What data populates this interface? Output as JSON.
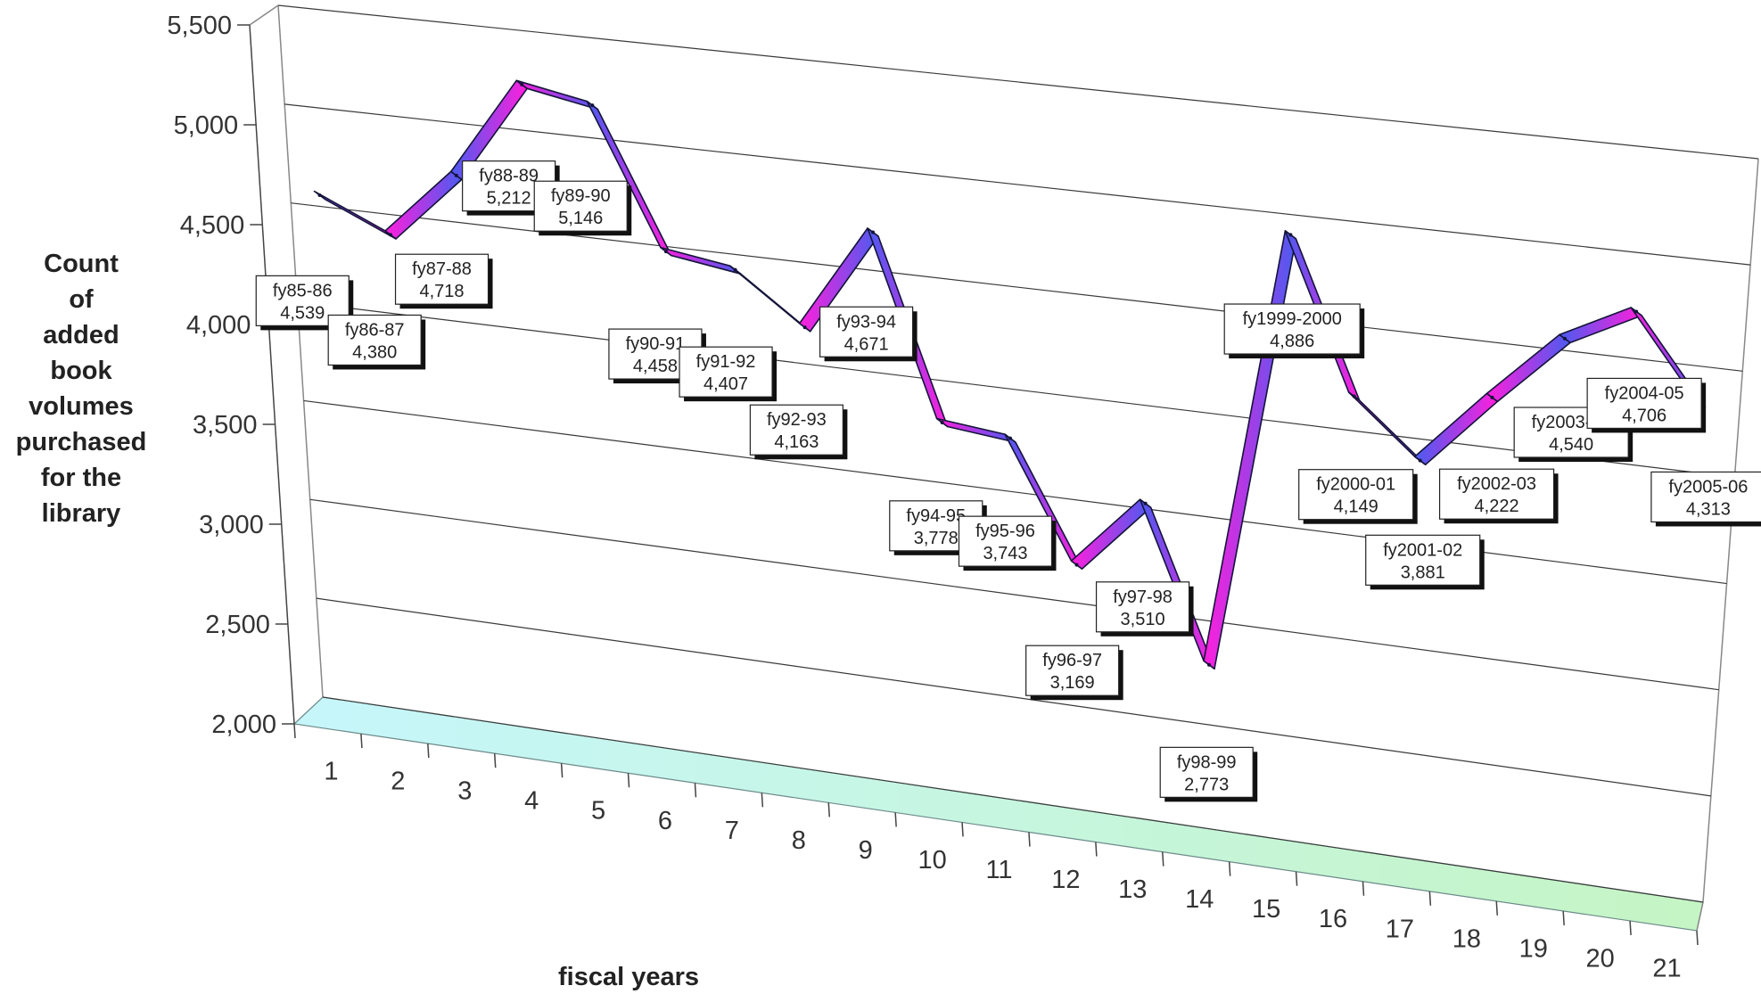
{
  "chart_data": {
    "type": "line",
    "title": "",
    "xlabel": "fiscal years",
    "ylabel_lines": [
      "Count",
      "of",
      "added",
      "book",
      "volumes",
      "purchased",
      "for the",
      "library"
    ],
    "ylim": [
      2000,
      5500
    ],
    "yticks": [
      "2,000",
      "2,500",
      "3,000",
      "3,500",
      "4,000",
      "4,500",
      "5,000",
      "5,500"
    ],
    "x": [
      1,
      2,
      3,
      4,
      5,
      6,
      7,
      8,
      9,
      10,
      11,
      12,
      13,
      14,
      15,
      16,
      17,
      18,
      19,
      20,
      21
    ],
    "xtick_labels": [
      "1",
      "2",
      "3",
      "4",
      "5",
      "6",
      "7",
      "8",
      "9",
      "10",
      "11",
      "12",
      "13",
      "14",
      "15",
      "16",
      "17",
      "18",
      "19",
      "20",
      "21"
    ],
    "series": [
      {
        "values": [
          4539,
          4380,
          4718,
          5212,
          5146,
          4458,
          4407,
          4163,
          4671,
          3778,
          3743,
          3169,
          3510,
          2773,
          4886,
          4149,
          3881,
          4222,
          4540,
          4706,
          4313
        ]
      }
    ],
    "data_labels": [
      {
        "period": "fy85-86",
        "value": "4,539"
      },
      {
        "period": "fy86-87",
        "value": "4,380"
      },
      {
        "period": "fy87-88",
        "value": "4,718"
      },
      {
        "period": "fy88-89",
        "value": "5,212"
      },
      {
        "period": "fy89-90",
        "value": "5,146"
      },
      {
        "period": "fy90-91",
        "value": "4,458"
      },
      {
        "period": "fy91-92",
        "value": "4,407"
      },
      {
        "period": "fy92-93",
        "value": "4,163"
      },
      {
        "period": "fy93-94",
        "value": "4,671"
      },
      {
        "period": "fy94-95",
        "value": "3,778"
      },
      {
        "period": "fy95-96",
        "value": "3,743"
      },
      {
        "period": "fy96-97",
        "value": "3,169"
      },
      {
        "period": "fy97-98",
        "value": "3,510"
      },
      {
        "period": "fy98-99",
        "value": "2,773"
      },
      {
        "period": "fy1999-2000",
        "value": "4,886"
      },
      {
        "period": "fy2000-01",
        "value": "4,149"
      },
      {
        "period": "fy2001-02",
        "value": "3,881"
      },
      {
        "period": "fy2002-03",
        "value": "4,222"
      },
      {
        "period": "fy2003-04",
        "value": "4,540"
      },
      {
        "period": "fy2004-05",
        "value": "4,706"
      },
      {
        "period": "fy2005-06",
        "value": "4,313"
      }
    ],
    "grid": true,
    "legend": "none",
    "colors": {
      "line_a": "#4a5cf0",
      "line_b": "#ff1fdc",
      "line_edge": "#14143a",
      "floor_left": "#c6f6fb",
      "floor_right": "#c5f5c4",
      "grid": "#3a3a3a",
      "wall": "#888888"
    }
  }
}
